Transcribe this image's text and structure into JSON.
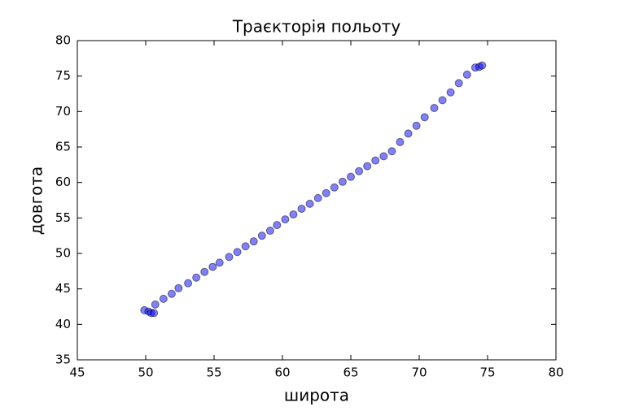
{
  "chart_data": {
    "type": "scatter",
    "title": "Траєкторія польоту",
    "x_label": "широта",
    "y_label": "довгота",
    "color": "#0000ff",
    "x": [
      49.9,
      50.2,
      50.4,
      50.6,
      50.7,
      51.3,
      51.9,
      52.4,
      53.1,
      53.7,
      54.3,
      54.9,
      55.4,
      56.1,
      56.7,
      57.3,
      57.9,
      58.5,
      59.1,
      59.6,
      60.2,
      60.8,
      61.4,
      62.0,
      62.6,
      63.2,
      63.8,
      64.4,
      65.0,
      65.6,
      66.2,
      66.8,
      67.4,
      68.0,
      68.6,
      69.2,
      69.8,
      70.4,
      71.1,
      71.7,
      72.3,
      72.9,
      73.5,
      74.1,
      74.4,
      74.6
    ],
    "values": [
      42.0,
      41.8,
      41.6,
      41.6,
      42.8,
      43.6,
      44.3,
      45.1,
      45.8,
      46.6,
      47.4,
      48.1,
      48.7,
      49.5,
      50.2,
      51.0,
      51.7,
      52.5,
      53.2,
      54.0,
      54.8,
      55.5,
      56.3,
      57.0,
      57.8,
      58.5,
      59.3,
      60.1,
      60.8,
      61.6,
      62.3,
      63.1,
      63.7,
      64.4,
      65.7,
      66.9,
      68.0,
      69.2,
      70.5,
      71.6,
      72.7,
      74.0,
      75.2,
      76.2,
      76.3,
      76.5
    ],
    "xlim": [
      45,
      80
    ],
    "xticks": [
      45,
      50,
      55,
      60,
      65,
      70,
      75,
      80
    ],
    "ylim": [
      35,
      80
    ],
    "yticks": [
      35,
      40,
      45,
      50,
      55,
      60,
      65,
      70,
      75,
      80
    ]
  }
}
